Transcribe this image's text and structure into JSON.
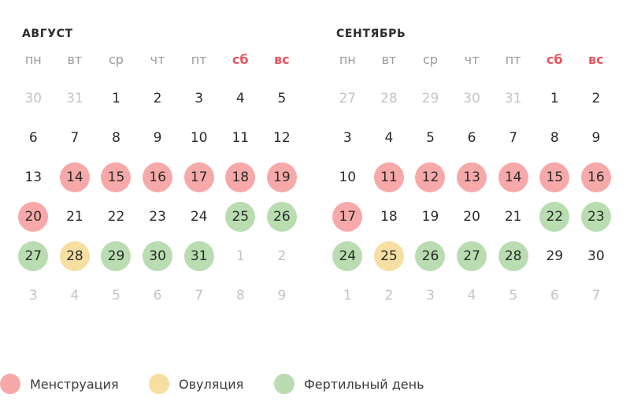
{
  "weekdays": [
    "пн",
    "вт",
    "ср",
    "чт",
    "пт",
    "сб",
    "вс"
  ],
  "colors": {
    "menstruation": "#f7a9a9",
    "ovulation": "#f7dfa2",
    "fertile": "#b9dcb1",
    "weekend_text": "#e8545b",
    "muted_text": "#c4c4c4"
  },
  "months": [
    {
      "title": "АВГУСТ",
      "days": [
        {
          "n": "30",
          "t": "muted"
        },
        {
          "n": "31",
          "t": "muted"
        },
        {
          "n": "1",
          "t": ""
        },
        {
          "n": "2",
          "t": ""
        },
        {
          "n": "3",
          "t": ""
        },
        {
          "n": "4",
          "t": ""
        },
        {
          "n": "5",
          "t": ""
        },
        {
          "n": "6",
          "t": ""
        },
        {
          "n": "7",
          "t": ""
        },
        {
          "n": "8",
          "t": ""
        },
        {
          "n": "9",
          "t": ""
        },
        {
          "n": "10",
          "t": ""
        },
        {
          "n": "11",
          "t": ""
        },
        {
          "n": "12",
          "t": ""
        },
        {
          "n": "13",
          "t": ""
        },
        {
          "n": "14",
          "t": "menstruation"
        },
        {
          "n": "15",
          "t": "menstruation"
        },
        {
          "n": "16",
          "t": "menstruation"
        },
        {
          "n": "17",
          "t": "menstruation"
        },
        {
          "n": "18",
          "t": "menstruation"
        },
        {
          "n": "19",
          "t": "menstruation"
        },
        {
          "n": "20",
          "t": "menstruation"
        },
        {
          "n": "21",
          "t": ""
        },
        {
          "n": "22",
          "t": ""
        },
        {
          "n": "23",
          "t": ""
        },
        {
          "n": "24",
          "t": ""
        },
        {
          "n": "25",
          "t": "fertile"
        },
        {
          "n": "26",
          "t": "fertile"
        },
        {
          "n": "27",
          "t": "fertile"
        },
        {
          "n": "28",
          "t": "ovulation"
        },
        {
          "n": "29",
          "t": "fertile"
        },
        {
          "n": "30",
          "t": "fertile"
        },
        {
          "n": "31",
          "t": "fertile"
        },
        {
          "n": "1",
          "t": "muted"
        },
        {
          "n": "2",
          "t": "muted"
        },
        {
          "n": "3",
          "t": "muted"
        },
        {
          "n": "4",
          "t": "muted"
        },
        {
          "n": "5",
          "t": "muted"
        },
        {
          "n": "6",
          "t": "muted"
        },
        {
          "n": "7",
          "t": "muted"
        },
        {
          "n": "8",
          "t": "muted"
        },
        {
          "n": "9",
          "t": "muted"
        }
      ]
    },
    {
      "title": "СЕНТЯБРЬ",
      "days": [
        {
          "n": "27",
          "t": "muted"
        },
        {
          "n": "28",
          "t": "muted"
        },
        {
          "n": "29",
          "t": "muted"
        },
        {
          "n": "30",
          "t": "muted"
        },
        {
          "n": "31",
          "t": "muted"
        },
        {
          "n": "1",
          "t": ""
        },
        {
          "n": "2",
          "t": ""
        },
        {
          "n": "3",
          "t": ""
        },
        {
          "n": "4",
          "t": ""
        },
        {
          "n": "5",
          "t": ""
        },
        {
          "n": "6",
          "t": ""
        },
        {
          "n": "7",
          "t": ""
        },
        {
          "n": "8",
          "t": ""
        },
        {
          "n": "9",
          "t": ""
        },
        {
          "n": "10",
          "t": ""
        },
        {
          "n": "11",
          "t": "menstruation"
        },
        {
          "n": "12",
          "t": "menstruation"
        },
        {
          "n": "13",
          "t": "menstruation"
        },
        {
          "n": "14",
          "t": "menstruation"
        },
        {
          "n": "15",
          "t": "menstruation"
        },
        {
          "n": "16",
          "t": "menstruation"
        },
        {
          "n": "17",
          "t": "menstruation"
        },
        {
          "n": "18",
          "t": ""
        },
        {
          "n": "19",
          "t": ""
        },
        {
          "n": "20",
          "t": ""
        },
        {
          "n": "21",
          "t": ""
        },
        {
          "n": "22",
          "t": "fertile"
        },
        {
          "n": "23",
          "t": "fertile"
        },
        {
          "n": "24",
          "t": "fertile"
        },
        {
          "n": "25",
          "t": "ovulation"
        },
        {
          "n": "26",
          "t": "fertile"
        },
        {
          "n": "27",
          "t": "fertile"
        },
        {
          "n": "28",
          "t": "fertile"
        },
        {
          "n": "29",
          "t": ""
        },
        {
          "n": "30",
          "t": ""
        },
        {
          "n": "1",
          "t": "muted"
        },
        {
          "n": "2",
          "t": "muted"
        },
        {
          "n": "3",
          "t": "muted"
        },
        {
          "n": "4",
          "t": "muted"
        },
        {
          "n": "5",
          "t": "muted"
        },
        {
          "n": "6",
          "t": "muted"
        },
        {
          "n": "7",
          "t": "muted"
        }
      ]
    }
  ],
  "legend": {
    "menstruation": "Менструация",
    "ovulation": "Овуляция",
    "fertile": "Фертильный день"
  }
}
